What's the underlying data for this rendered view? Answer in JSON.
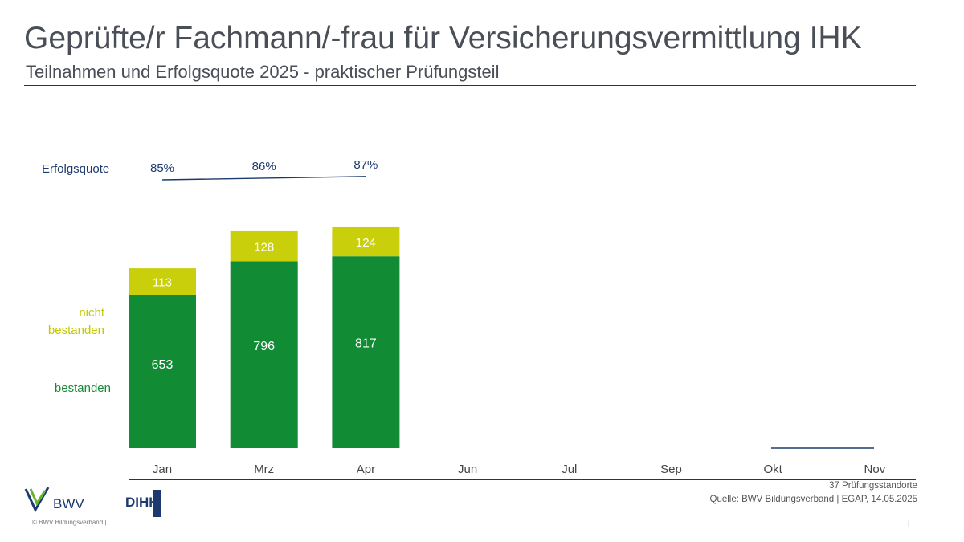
{
  "header": {
    "title": "Geprüfte/r Fachmann/-frau für Versicherungsvermittlung IHK",
    "subtitle": "Teilnahmen und Erfolgsquote 2025 - praktischer Prüfungsteil"
  },
  "chart_data": {
    "type": "bar",
    "categories": [
      "Jan",
      "Mrz",
      "Apr",
      "Jun",
      "Jul",
      "Sep",
      "Okt",
      "Nov"
    ],
    "series": [
      {
        "name": "bestanden",
        "values": [
          653,
          796,
          817,
          null,
          null,
          null,
          null,
          null
        ]
      },
      {
        "name": "nicht bestanden",
        "values": [
          113,
          128,
          124,
          null,
          null,
          null,
          null,
          null
        ]
      }
    ],
    "rate": {
      "name": "Erfolgsquote",
      "values": [
        85,
        86,
        87,
        null,
        null,
        null,
        null,
        null
      ],
      "labels": [
        "85%",
        "86%",
        "87%",
        "",
        "",
        "",
        "",
        ""
      ]
    },
    "stacked": true,
    "ylim": [
      0,
      1000
    ],
    "grid": false,
    "legend": "left",
    "colors": {
      "bestanden": "#118c34",
      "nicht_bestanden": "#c9cf0a",
      "rate_line": "#1c3a6e",
      "text_on_bar": "#ffffff"
    }
  },
  "legend_labels": {
    "rate": "Erfolgsquote",
    "nicht_line1": "nicht",
    "nicht_line2": "bestanden",
    "bestanden": "bestanden"
  },
  "footer": {
    "note_locations": "37 Prüfungsstandorte",
    "source": "Quelle: BWV Bildungsverband | EGAP, 14.05.2025",
    "copyright": "© BWV Bildungsverband |",
    "page_separator": "|"
  },
  "logos": {
    "bwv": "BWV",
    "dihk": "DIHK"
  }
}
